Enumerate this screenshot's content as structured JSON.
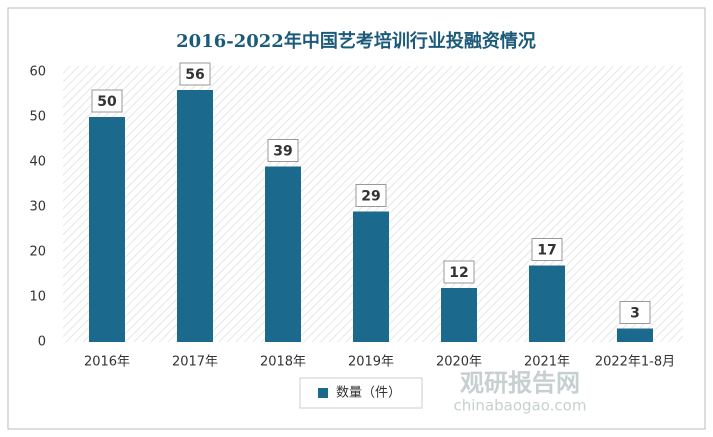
{
  "chart_data": {
    "type": "bar",
    "title": "2016-2022年中国艺考培训行业投融资情况",
    "categories": [
      "2016年",
      "2017年",
      "2018年",
      "2019年",
      "2020年",
      "2021年",
      "2022年1-8月"
    ],
    "series": [
      {
        "name": "数量（件）",
        "color": "#1b6a8e",
        "values": [
          50,
          56,
          39,
          29,
          12,
          17,
          3
        ]
      }
    ],
    "ylim": [
      0,
      60
    ],
    "yticks": [
      0,
      10,
      20,
      30,
      40,
      50,
      60
    ],
    "grid": false,
    "legend": "bottom"
  },
  "watermark": {
    "brand": "观研报告网",
    "url": "chinabaogao.com"
  }
}
